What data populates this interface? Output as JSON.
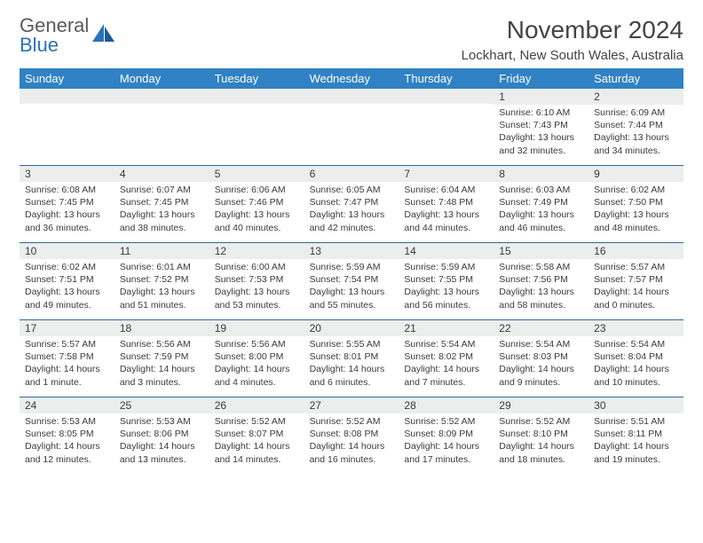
{
  "brand": {
    "top": "General",
    "bottom": "Blue"
  },
  "title": "November 2024",
  "location": "Lockhart, New South Wales, Australia",
  "colors": {
    "header_bg": "#3082c4",
    "header_text": "#ffffff",
    "daynum_bg": "#eceded",
    "week_border": "#2a6aa0",
    "text": "#3a3a3a",
    "brand_accent": "#2a73b8"
  },
  "day_names": [
    "Sunday",
    "Monday",
    "Tuesday",
    "Wednesday",
    "Thursday",
    "Friday",
    "Saturday"
  ],
  "weeks": [
    [
      {
        "n": "",
        "sr": "",
        "ss": "",
        "dl": ""
      },
      {
        "n": "",
        "sr": "",
        "ss": "",
        "dl": ""
      },
      {
        "n": "",
        "sr": "",
        "ss": "",
        "dl": ""
      },
      {
        "n": "",
        "sr": "",
        "ss": "",
        "dl": ""
      },
      {
        "n": "",
        "sr": "",
        "ss": "",
        "dl": ""
      },
      {
        "n": "1",
        "sr": "Sunrise: 6:10 AM",
        "ss": "Sunset: 7:43 PM",
        "dl": "Daylight: 13 hours and 32 minutes."
      },
      {
        "n": "2",
        "sr": "Sunrise: 6:09 AM",
        "ss": "Sunset: 7:44 PM",
        "dl": "Daylight: 13 hours and 34 minutes."
      }
    ],
    [
      {
        "n": "3",
        "sr": "Sunrise: 6:08 AM",
        "ss": "Sunset: 7:45 PM",
        "dl": "Daylight: 13 hours and 36 minutes."
      },
      {
        "n": "4",
        "sr": "Sunrise: 6:07 AM",
        "ss": "Sunset: 7:45 PM",
        "dl": "Daylight: 13 hours and 38 minutes."
      },
      {
        "n": "5",
        "sr": "Sunrise: 6:06 AM",
        "ss": "Sunset: 7:46 PM",
        "dl": "Daylight: 13 hours and 40 minutes."
      },
      {
        "n": "6",
        "sr": "Sunrise: 6:05 AM",
        "ss": "Sunset: 7:47 PM",
        "dl": "Daylight: 13 hours and 42 minutes."
      },
      {
        "n": "7",
        "sr": "Sunrise: 6:04 AM",
        "ss": "Sunset: 7:48 PM",
        "dl": "Daylight: 13 hours and 44 minutes."
      },
      {
        "n": "8",
        "sr": "Sunrise: 6:03 AM",
        "ss": "Sunset: 7:49 PM",
        "dl": "Daylight: 13 hours and 46 minutes."
      },
      {
        "n": "9",
        "sr": "Sunrise: 6:02 AM",
        "ss": "Sunset: 7:50 PM",
        "dl": "Daylight: 13 hours and 48 minutes."
      }
    ],
    [
      {
        "n": "10",
        "sr": "Sunrise: 6:02 AM",
        "ss": "Sunset: 7:51 PM",
        "dl": "Daylight: 13 hours and 49 minutes."
      },
      {
        "n": "11",
        "sr": "Sunrise: 6:01 AM",
        "ss": "Sunset: 7:52 PM",
        "dl": "Daylight: 13 hours and 51 minutes."
      },
      {
        "n": "12",
        "sr": "Sunrise: 6:00 AM",
        "ss": "Sunset: 7:53 PM",
        "dl": "Daylight: 13 hours and 53 minutes."
      },
      {
        "n": "13",
        "sr": "Sunrise: 5:59 AM",
        "ss": "Sunset: 7:54 PM",
        "dl": "Daylight: 13 hours and 55 minutes."
      },
      {
        "n": "14",
        "sr": "Sunrise: 5:59 AM",
        "ss": "Sunset: 7:55 PM",
        "dl": "Daylight: 13 hours and 56 minutes."
      },
      {
        "n": "15",
        "sr": "Sunrise: 5:58 AM",
        "ss": "Sunset: 7:56 PM",
        "dl": "Daylight: 13 hours and 58 minutes."
      },
      {
        "n": "16",
        "sr": "Sunrise: 5:57 AM",
        "ss": "Sunset: 7:57 PM",
        "dl": "Daylight: 14 hours and 0 minutes."
      }
    ],
    [
      {
        "n": "17",
        "sr": "Sunrise: 5:57 AM",
        "ss": "Sunset: 7:58 PM",
        "dl": "Daylight: 14 hours and 1 minute."
      },
      {
        "n": "18",
        "sr": "Sunrise: 5:56 AM",
        "ss": "Sunset: 7:59 PM",
        "dl": "Daylight: 14 hours and 3 minutes."
      },
      {
        "n": "19",
        "sr": "Sunrise: 5:56 AM",
        "ss": "Sunset: 8:00 PM",
        "dl": "Daylight: 14 hours and 4 minutes."
      },
      {
        "n": "20",
        "sr": "Sunrise: 5:55 AM",
        "ss": "Sunset: 8:01 PM",
        "dl": "Daylight: 14 hours and 6 minutes."
      },
      {
        "n": "21",
        "sr": "Sunrise: 5:54 AM",
        "ss": "Sunset: 8:02 PM",
        "dl": "Daylight: 14 hours and 7 minutes."
      },
      {
        "n": "22",
        "sr": "Sunrise: 5:54 AM",
        "ss": "Sunset: 8:03 PM",
        "dl": "Daylight: 14 hours and 9 minutes."
      },
      {
        "n": "23",
        "sr": "Sunrise: 5:54 AM",
        "ss": "Sunset: 8:04 PM",
        "dl": "Daylight: 14 hours and 10 minutes."
      }
    ],
    [
      {
        "n": "24",
        "sr": "Sunrise: 5:53 AM",
        "ss": "Sunset: 8:05 PM",
        "dl": "Daylight: 14 hours and 12 minutes."
      },
      {
        "n": "25",
        "sr": "Sunrise: 5:53 AM",
        "ss": "Sunset: 8:06 PM",
        "dl": "Daylight: 14 hours and 13 minutes."
      },
      {
        "n": "26",
        "sr": "Sunrise: 5:52 AM",
        "ss": "Sunset: 8:07 PM",
        "dl": "Daylight: 14 hours and 14 minutes."
      },
      {
        "n": "27",
        "sr": "Sunrise: 5:52 AM",
        "ss": "Sunset: 8:08 PM",
        "dl": "Daylight: 14 hours and 16 minutes."
      },
      {
        "n": "28",
        "sr": "Sunrise: 5:52 AM",
        "ss": "Sunset: 8:09 PM",
        "dl": "Daylight: 14 hours and 17 minutes."
      },
      {
        "n": "29",
        "sr": "Sunrise: 5:52 AM",
        "ss": "Sunset: 8:10 PM",
        "dl": "Daylight: 14 hours and 18 minutes."
      },
      {
        "n": "30",
        "sr": "Sunrise: 5:51 AM",
        "ss": "Sunset: 8:11 PM",
        "dl": "Daylight: 14 hours and 19 minutes."
      }
    ]
  ]
}
